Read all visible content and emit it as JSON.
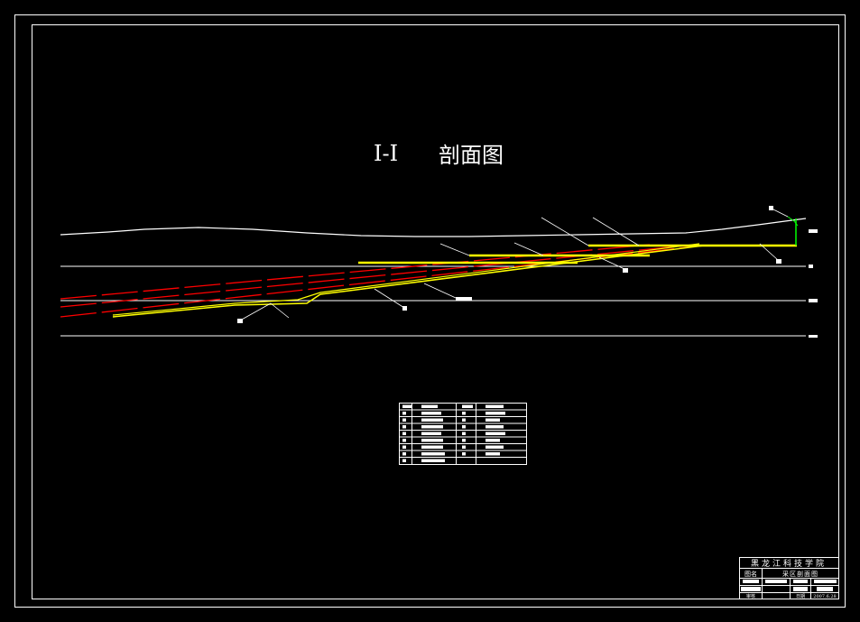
{
  "drawing": {
    "title_roman": "I-I",
    "title_cn": "剖面图",
    "colors": {
      "background": "#000000",
      "frame": "#ffffff",
      "coal_seam": "#ffff00",
      "roadway": "#ff0000",
      "shaft": "#00ff00"
    }
  },
  "title_block": {
    "institution": "黑龙江科技学院",
    "drawing_name_label": "图名",
    "drawing_name": "采区剖面图",
    "reviewer_label": "审核",
    "date_label": "日期",
    "date": "2007.6.28"
  }
}
